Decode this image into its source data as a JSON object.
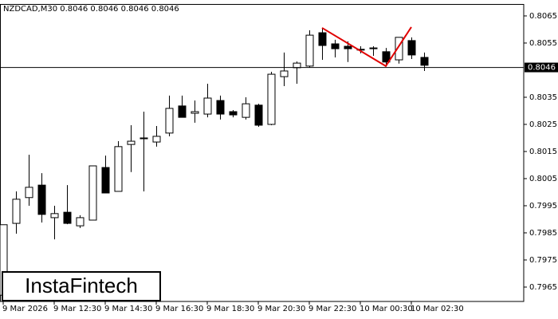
{
  "chart_data": {
    "type": "candlestick",
    "title": "NZDCAD,M30  0.8046 0.8046 0.8046 0.8046",
    "watermark": "InstaFintech",
    "categories": [
      "9 Mar 2026",
      null,
      null,
      null,
      "9 Mar 12:30",
      null,
      null,
      null,
      "9 Mar 14:30",
      null,
      null,
      null,
      "9 Mar 16:30",
      null,
      null,
      null,
      "9 Mar 18:30",
      null,
      null,
      null,
      "9 Mar 20:30",
      null,
      null,
      null,
      "9 Mar 22:30",
      null,
      null,
      null,
      "10 Mar 00:30",
      null,
      null,
      null,
      "10 Mar 02:30",
      null
    ],
    "open": [
      0.7962,
      0.79885,
      0.7998,
      0.80026,
      0.79906,
      0.79926,
      0.79876,
      0.79897,
      0.80091,
      0.80003,
      0.80176,
      0.80197,
      0.80185,
      0.80218,
      0.80318,
      0.80291,
      0.80288,
      0.80338,
      0.80297,
      0.80276,
      0.80321,
      0.8025,
      0.80426,
      0.80459,
      0.80465,
      0.80588,
      0.80547,
      0.80538,
      0.80527,
      0.80532,
      0.80518,
      0.80488,
      0.80559,
      0.80497
    ],
    "high": [
      0.7988,
      0.80003,
      0.80138,
      0.8007,
      0.7995,
      0.80026,
      0.79915,
      0.80097,
      0.80135,
      0.80188,
      0.80247,
      0.80297,
      0.80244,
      0.80356,
      0.80356,
      0.80338,
      0.804,
      0.80356,
      0.80303,
      0.8035,
      0.80326,
      0.80444,
      0.80515,
      0.80482,
      0.80597,
      0.80603,
      0.80562,
      0.80556,
      0.80538,
      0.80538,
      0.80532,
      0.80571,
      0.80571,
      0.80515
    ],
    "low": [
      0.7961,
      0.79847,
      0.7995,
      0.79888,
      0.79826,
      0.79882,
      0.79868,
      0.79897,
      0.79997,
      0.80003,
      0.80074,
      0.80003,
      0.80168,
      0.80206,
      0.80276,
      0.80256,
      0.80276,
      0.80268,
      0.80276,
      0.80268,
      0.80241,
      0.80247,
      0.80391,
      0.804,
      0.80459,
      0.80488,
      0.80497,
      0.8048,
      0.80512,
      0.80503,
      0.80465,
      0.80474,
      0.80491,
      0.80447
    ],
    "close": [
      0.7988,
      0.79974,
      0.80018,
      0.79918,
      0.79921,
      0.79885,
      0.79906,
      0.80097,
      0.79997,
      0.80168,
      0.80188,
      0.802,
      0.80206,
      0.80309,
      0.80276,
      0.80297,
      0.80347,
      0.80288,
      0.80285,
      0.80326,
      0.80247,
      0.80435,
      0.80447,
      0.80476,
      0.80579,
      0.80541,
      0.80529,
      0.80529,
      0.80524,
      0.80529,
      0.8048,
      0.80571,
      0.80506,
      0.80468
    ],
    "up_color": "#ffffff",
    "down_color": "#000000",
    "wick_color": "#000000",
    "current_price": 0.8046,
    "pattern": {
      "color": "#e00000",
      "bar_indices": [
        25,
        30,
        32
      ],
      "prices": [
        0.80606,
        0.80465,
        0.80609
      ]
    },
    "ylim": [
      0.79597,
      0.80694
    ],
    "yticks": [
      0.7965,
      0.7975,
      0.7985,
      0.7995,
      0.8005,
      0.8015,
      0.8025,
      0.8035,
      0.8055,
      0.8065
    ]
  }
}
